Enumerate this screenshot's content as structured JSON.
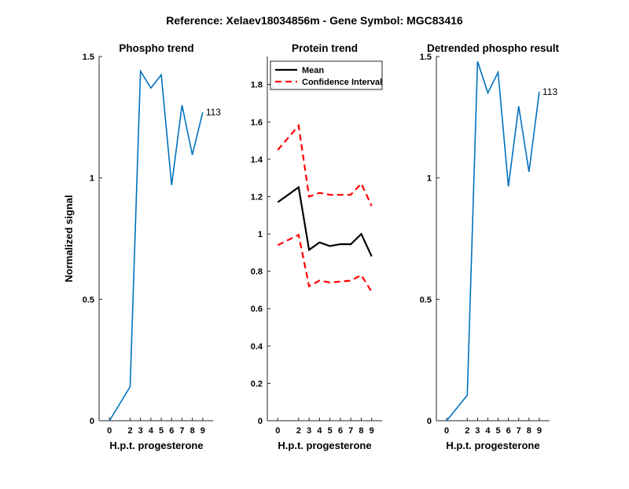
{
  "suptitle": "Reference:  Xelaev18034856m - Gene Symbol:  MGC83416",
  "colors": {
    "phospho": "#0072bd",
    "mean": "#000000",
    "ci": "#ff0000"
  },
  "chart_data": [
    {
      "type": "line",
      "title": "Phospho trend",
      "xlabel": "H.p.t. progesterone",
      "ylabel": "Normalized signal",
      "x": [
        0,
        2,
        3,
        4,
        5,
        6,
        7,
        8,
        9
      ],
      "x_tick_labels": [
        "0",
        "2",
        "3",
        "4",
        "5",
        "6",
        "7",
        "8",
        "9"
      ],
      "ylim": [
        0,
        1.5
      ],
      "y_ticks": [
        0,
        0.5,
        1,
        1.5
      ],
      "y_tick_labels": [
        "0",
        "0.5",
        "1",
        "1.5"
      ],
      "series": [
        {
          "values": [
            0.0,
            0.14,
            1.44,
            1.37,
            1.425,
            0.97,
            1.3,
            1.095,
            1.27
          ]
        }
      ],
      "end_label": "113",
      "grid": false
    },
    {
      "type": "line",
      "title": "Protein trend",
      "xlabel": "H.p.t. progesterone",
      "ylabel": "",
      "x": [
        0,
        2,
        3,
        4,
        5,
        6,
        7,
        8,
        9
      ],
      "x_tick_labels": [
        "0",
        "2",
        "3",
        "4",
        "5",
        "6",
        "7",
        "8",
        "9"
      ],
      "ylim": [
        0,
        1.95
      ],
      "y_ticks": [
        0,
        0.2,
        0.4,
        0.6,
        0.8,
        1,
        1.2,
        1.4,
        1.6,
        1.8
      ],
      "y_tick_labels": [
        "0",
        "0.2",
        "0.4",
        "0.6",
        "0.8",
        "1",
        "1.2",
        "1.4",
        "1.6",
        "1.8"
      ],
      "series": [
        {
          "name": "Mean",
          "style": "solid",
          "values": [
            1.17,
            1.25,
            0.915,
            0.955,
            0.935,
            0.945,
            0.945,
            1.0,
            0.88
          ]
        },
        {
          "name": "Confidence Interval",
          "style": "dashed",
          "values": [
            1.45,
            1.58,
            1.2,
            1.22,
            1.21,
            1.21,
            1.21,
            1.27,
            1.15
          ]
        },
        {
          "style": "dashed",
          "values": [
            0.94,
            0.995,
            0.72,
            0.75,
            0.74,
            0.745,
            0.75,
            0.78,
            0.69
          ]
        }
      ],
      "legend": {
        "position": "top-left",
        "entries": [
          "Mean",
          "Confidence Interval"
        ]
      },
      "grid": false
    },
    {
      "type": "line",
      "title": "Detrended phospho result",
      "xlabel": "H.p.t. progesterone",
      "ylabel": "",
      "x": [
        0,
        2,
        3,
        4,
        5,
        6,
        7,
        8,
        9
      ],
      "x_tick_labels": [
        "0",
        "2",
        "3",
        "4",
        "5",
        "6",
        "7",
        "8",
        "9"
      ],
      "ylim": [
        0,
        1.5
      ],
      "y_ticks": [
        0,
        0.5,
        1,
        1.5
      ],
      "y_tick_labels": [
        "0",
        "0.5",
        "1",
        "1.5"
      ],
      "series": [
        {
          "values": [
            0.0,
            0.105,
            1.48,
            1.35,
            1.435,
            0.965,
            1.295,
            1.025,
            1.355
          ]
        }
      ],
      "end_label": "113",
      "grid": false
    }
  ]
}
